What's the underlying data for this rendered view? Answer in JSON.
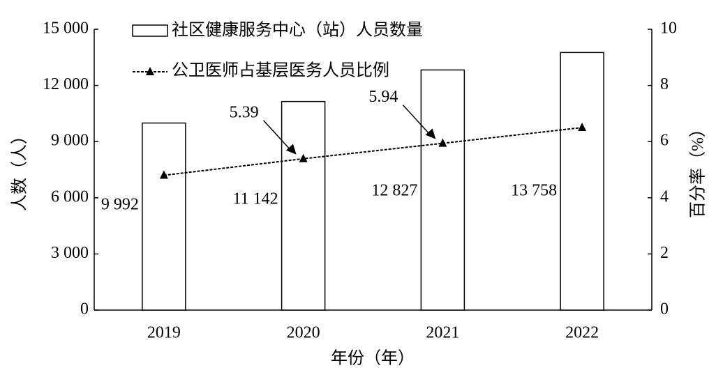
{
  "chart_data": {
    "type": "bar-line",
    "x_label": "年份（年）",
    "y_label": "人数（人）",
    "y2_label": "百分率（%）",
    "categories": [
      "2019",
      "2020",
      "2021",
      "2022"
    ],
    "series": [
      {
        "name": "社区健康服务中心（站）人员数量",
        "type": "bar",
        "color": "#ffffff",
        "values": [
          9992,
          11142,
          12827,
          13758
        ],
        "value_labels": [
          "9 992",
          "11 142",
          "12 827",
          "13 758"
        ]
      },
      {
        "name": "公卫医师占基层医务人员比例",
        "type": "line",
        "axis": "y2",
        "color": "#000000",
        "values": [
          4.8,
          5.39,
          5.94,
          6.5
        ],
        "value_labels": [
          null,
          "5.39",
          "5.94",
          null
        ]
      }
    ],
    "ylim": [
      0,
      15000
    ],
    "yticks": [
      0,
      {
        "value": 3000,
        "label": "3 000"
      },
      {
        "value": 6000,
        "label": "6 000"
      },
      {
        "value": 9000,
        "label": "9 000"
      },
      {
        "value": 12000,
        "label": "12 000"
      },
      {
        "value": 15000,
        "label": "15 000"
      }
    ],
    "y2lim": [
      0,
      10
    ],
    "y2ticks": [
      0,
      2,
      4,
      6,
      8,
      10
    ]
  }
}
